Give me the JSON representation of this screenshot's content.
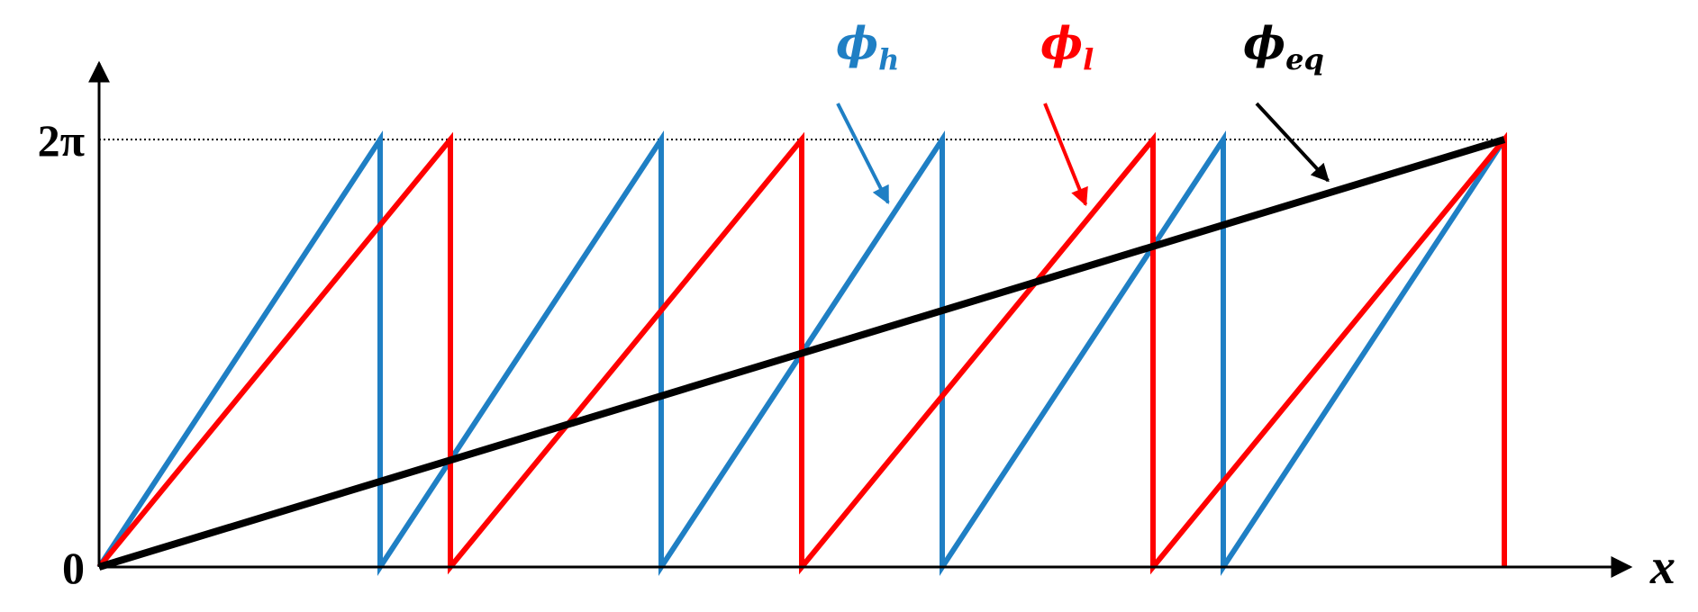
{
  "chart_data": {
    "type": "line",
    "xlabel": "x",
    "ylabel": "",
    "xlim": [
      0,
      10
    ],
    "ylim": [
      0,
      6.2832
    ],
    "y_ticks": [
      {
        "value": 0,
        "label": "0"
      },
      {
        "value": 6.2832,
        "label": "2π"
      }
    ],
    "reference_line": {
      "y": 6.2832,
      "style": "dotted"
    },
    "grid": false,
    "series": [
      {
        "name": "ϕ",
        "subscript": "h",
        "color": "#1f7fc4",
        "period": 2.0,
        "x": [
          0,
          2,
          2,
          4,
          4,
          6,
          6,
          8,
          8,
          10
        ],
        "y": [
          0,
          6.2832,
          0,
          6.2832,
          0,
          6.2832,
          0,
          6.2832,
          0,
          6.2832
        ]
      },
      {
        "name": "ϕ",
        "subscript": "l",
        "color": "#ff0000",
        "period": 2.5,
        "x": [
          0,
          2.5,
          2.5,
          5,
          5,
          7.5,
          7.5,
          10,
          10
        ],
        "y": [
          0,
          6.2832,
          0,
          6.2832,
          0,
          6.2832,
          0,
          6.2832,
          0
        ]
      },
      {
        "name": "ϕ",
        "subscript": "eq",
        "color": "#000000",
        "x": [
          0,
          10
        ],
        "y": [
          0,
          6.2832
        ]
      }
    ],
    "annotations": [
      {
        "series": 0,
        "label": "ϕ",
        "subscript": "h",
        "color": "#1f7fc4",
        "arrow_to_x": 5.65
      },
      {
        "series": 1,
        "label": "ϕ",
        "subscript": "l",
        "color": "#ff0000",
        "arrow_to_x": 7.05
      },
      {
        "series": 2,
        "label": "ϕ",
        "subscript": "eq",
        "color": "#000000",
        "arrow_to_x": 8.8
      }
    ]
  }
}
